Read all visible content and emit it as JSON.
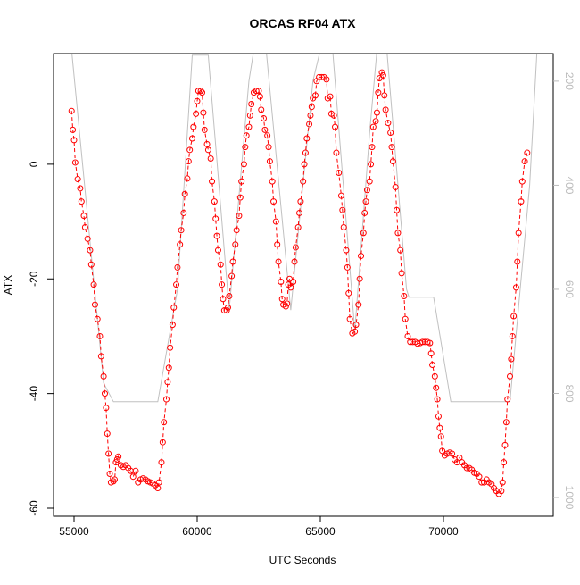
{
  "chart_data": {
    "type": "line",
    "title": "ORCAS RF04 ATX",
    "xlabel": "UTC Seconds",
    "ylabel": "ATX",
    "xlim": [
      54167,
      74457
    ],
    "ylim": [
      -61.4,
      19.3
    ],
    "y2lim": [
      1036,
      147
    ],
    "xticks": [
      55000,
      60000,
      65000,
      70000
    ],
    "yticks": [
      -60,
      -40,
      -20,
      0
    ],
    "y2ticks": [
      200,
      400,
      600,
      800,
      1000
    ],
    "series": [
      {
        "color": "#ff0000",
        "x": [
          54900,
          54950,
          55000,
          55050,
          55150,
          55250,
          55300,
          55400,
          55450,
          55550,
          55650,
          55700,
          55800,
          55850,
          55950,
          56050,
          56100,
          56200,
          56250,
          56300,
          56350,
          56400,
          56450,
          56500,
          56600,
          56650,
          56700,
          56750,
          56800,
          56900,
          57000,
          57100,
          57200,
          57300,
          57400,
          57500,
          57600,
          57700,
          57800,
          57900,
          58000,
          58100,
          58200,
          58300,
          58400,
          58450,
          58550,
          58600,
          58650,
          58750,
          58800,
          58850,
          58900,
          59000,
          59050,
          59150,
          59200,
          59300,
          59350,
          59450,
          59500,
          59600,
          59650,
          59700,
          59800,
          59850,
          59950,
          60000,
          60050,
          60150,
          60200,
          60250,
          60300,
          60400,
          60450,
          60550,
          60600,
          60700,
          60750,
          60800,
          60850,
          60950,
          61000,
          61050,
          61100,
          61200,
          61250,
          61300,
          61400,
          61450,
          61550,
          61600,
          61700,
          61750,
          61800,
          61900,
          61950,
          62000,
          62100,
          62150,
          62200,
          62300,
          62400,
          62500,
          62550,
          62600,
          62700,
          62750,
          62850,
          62900,
          62950,
          63050,
          63100,
          63200,
          63250,
          63300,
          63400,
          63450,
          63500,
          63600,
          63650,
          63700,
          63750,
          63800,
          63900,
          63950,
          64000,
          64100,
          64150,
          64200,
          64300,
          64350,
          64400,
          64450,
          64550,
          64600,
          64650,
          64700,
          64800,
          64850,
          64950,
          65050,
          65150,
          65250,
          65300,
          65400,
          65450,
          65550,
          65600,
          65650,
          65750,
          65850,
          65900,
          65950,
          66050,
          66100,
          66150,
          66200,
          66300,
          66400,
          66450,
          66550,
          66600,
          66650,
          66750,
          66800,
          66850,
          66900,
          67000,
          67050,
          67100,
          67150,
          67250,
          67300,
          67350,
          67400,
          67500,
          67550,
          67600,
          67650,
          67750,
          67850,
          67900,
          67950,
          68050,
          68100,
          68150,
          68250,
          68300,
          68400,
          68450,
          68550,
          68650,
          68750,
          68850,
          68950,
          69050,
          69150,
          69250,
          69350,
          69450,
          69500,
          69550,
          69650,
          69700,
          69750,
          69800,
          69850,
          69900,
          69950,
          70050,
          70150,
          70250,
          70350,
          70450,
          70550,
          70650,
          70750,
          70850,
          70950,
          71050,
          71150,
          71250,
          71350,
          71450,
          71550,
          71650,
          71750,
          71850,
          71950,
          72050,
          72150,
          72250,
          72350,
          72400,
          72450,
          72500,
          72550,
          72600,
          72700,
          72750,
          72800,
          72850,
          72950,
          73000,
          73050,
          73150,
          73200,
          73300,
          73400
        ],
        "values": [
          9.3,
          6.0,
          4.2,
          0.3,
          -2.6,
          -4.2,
          -6.5,
          -9.0,
          -11.0,
          -13.0,
          -15.0,
          -17.5,
          -21.0,
          -24.5,
          -27.0,
          -30.0,
          -33.5,
          -37.0,
          -40.0,
          -42.5,
          -47.0,
          -50.5,
          -54.0,
          -55.5,
          -55.3,
          -55.0,
          -52.0,
          -51.5,
          -51.0,
          -52.5,
          -52.8,
          -52.5,
          -53.0,
          -53.5,
          -54.5,
          -53.5,
          -55.5,
          -55.0,
          -54.8,
          -55.0,
          -55.3,
          -55.5,
          -55.7,
          -56.0,
          -56.5,
          -55.5,
          -52.0,
          -48.5,
          -45.0,
          -41.0,
          -38.0,
          -35.5,
          -32.0,
          -28.0,
          -25.0,
          -21.0,
          -18.0,
          -14.0,
          -11.5,
          -8.5,
          -5.2,
          -2.5,
          0.5,
          2.5,
          4.5,
          6.5,
          8.8,
          11.0,
          12.8,
          12.8,
          12.5,
          9.0,
          6.0,
          3.5,
          2.5,
          1.0,
          -3.0,
          -6.5,
          -9.5,
          -12.5,
          -15.0,
          -17.5,
          -21.0,
          -23.5,
          -25.5,
          -25.5,
          -25.0,
          -23.0,
          -19.5,
          -17.0,
          -14.0,
          -11.5,
          -9.0,
          -5.8,
          -3.0,
          0.0,
          3.0,
          5.0,
          6.5,
          8.5,
          10.5,
          12.5,
          12.8,
          12.8,
          11.8,
          9.5,
          8.0,
          6.0,
          5.0,
          3.0,
          0.5,
          -3.0,
          -6.5,
          -10.0,
          -14.0,
          -17.0,
          -20.5,
          -23.5,
          -24.5,
          -24.8,
          -24.3,
          -21.0,
          -20.0,
          -21.5,
          -20.5,
          -17.0,
          -14.5,
          -11.0,
          -8.5,
          -6.5,
          -3.0,
          0.0,
          2.0,
          4.5,
          7.0,
          8.5,
          10.0,
          11.5,
          12.0,
          14.5,
          15.2,
          15.2,
          15.2,
          14.8,
          11.5,
          11.8,
          8.8,
          8.5,
          6.5,
          2.0,
          -1.5,
          -5.5,
          -8.0,
          -11.0,
          -15.0,
          -18.0,
          -22.5,
          -27.0,
          -29.5,
          -29.2,
          -28.0,
          -24.5,
          -20.0,
          -16.0,
          -12.0,
          -8.5,
          -6.5,
          -4.5,
          -3.0,
          0.0,
          3.0,
          6.5,
          7.5,
          9.0,
          12.5,
          15.0,
          16.0,
          15.5,
          12.0,
          9.5,
          7.2,
          5.5,
          3.0,
          0.5,
          -4.0,
          -8.0,
          -12.0,
          -15.0,
          -19.0,
          -23.0,
          -27.0,
          -30.0,
          -31.0,
          -31.0,
          -31.0,
          -31.3,
          -31.2,
          -31.0,
          -31.0,
          -31.0,
          -31.2,
          -33.0,
          -35.0,
          -37.0,
          -39.0,
          -41.0,
          -44.0,
          -46.0,
          -47.5,
          -50.0,
          -50.8,
          -50.5,
          -50.3,
          -50.5,
          -51.5,
          -52.0,
          -51.2,
          -52.0,
          -52.5,
          -53.0,
          -53.0,
          -53.3,
          -53.8,
          -54.0,
          -54.5,
          -55.5,
          -55.5,
          -55.0,
          -55.5,
          -55.8,
          -56.5,
          -57.0,
          -57.5,
          -57.0,
          -55.5,
          -52.0,
          -49.0,
          -45.0,
          -41.0,
          -37.0,
          -34.0,
          -30.0,
          -26.5,
          -21.5,
          -17.0,
          -12.0,
          -6.5,
          -3.0,
          0.5,
          2.0
        ]
      },
      {
        "color": "#c0c0c0",
        "axis": "y2",
        "x": [
          54900,
          56200,
          56600,
          58400,
          59200,
          59800,
          60450,
          61300,
          62100,
          62300,
          62800,
          63800,
          64700,
          65000,
          65500,
          66400,
          67000,
          67300,
          67700,
          68500,
          68600,
          69600,
          70300,
          72700,
          73500,
          73800
        ],
        "values": [
          140,
          780,
          816,
          816,
          600,
          150,
          150,
          640,
          200,
          140,
          140,
          640,
          200,
          140,
          140,
          680,
          300,
          140,
          140,
          600,
          615,
          615,
          816,
          816,
          400,
          140
        ]
      }
    ]
  }
}
